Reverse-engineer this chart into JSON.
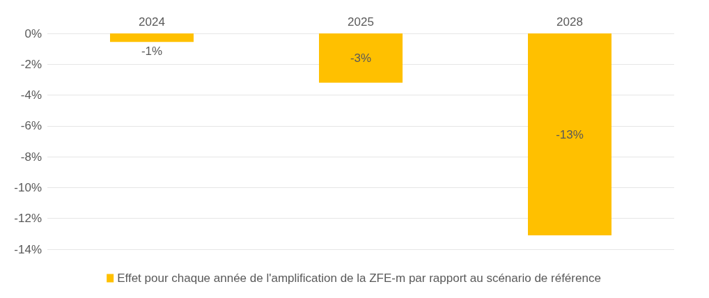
{
  "chart_data": {
    "type": "bar",
    "categories": [
      "2024",
      "2025",
      "2028"
    ],
    "series": [
      {
        "name": "Effet pour chaque année de l'amplification de la ZFE-m par rapport au scénario de référence",
        "color": "#ffc000",
        "values": [
          -0.55,
          -3.2,
          -13.1
        ],
        "value_labels": [
          "-1%",
          "-3%",
          "-13%"
        ]
      }
    ],
    "ylim": [
      -14,
      0
    ],
    "yticks": [
      {
        "value": 0,
        "label": "0%"
      },
      {
        "value": -2,
        "label": "-2%"
      },
      {
        "value": -4,
        "label": "-4%"
      },
      {
        "value": -6,
        "label": "-6%"
      },
      {
        "value": -8,
        "label": "-8%"
      },
      {
        "value": -10,
        "label": "-10%"
      },
      {
        "value": -12,
        "label": "-12%"
      },
      {
        "value": -14,
        "label": "-14%"
      }
    ],
    "grid": "y",
    "legend": "bottom"
  }
}
